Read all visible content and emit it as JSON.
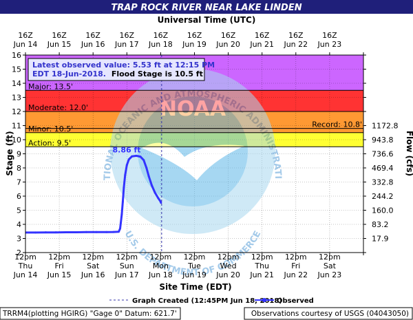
{
  "chart_data": {
    "type": "line",
    "title": "TRAP ROCK RIVER NEAR LAKE LINDEN",
    "top_axis_title": "Universal Time (UTC)",
    "xlabel": "Site Time (EDT)",
    "ylabel": "Stage (ft)",
    "y2label": "Flow (cfs)",
    "ylim": [
      2,
      16
    ],
    "y_ticks": [
      2,
      3,
      4,
      5,
      6,
      7,
      8,
      9,
      10,
      11,
      12,
      13,
      14,
      15,
      16
    ],
    "bottom_ticks": [
      {
        "line1": "12pm",
        "line2": "Thu",
        "line3": "Jun 14"
      },
      {
        "line1": "12pm",
        "line2": "Fri",
        "line3": "Jun 15"
      },
      {
        "line1": "12pm",
        "line2": "Sat",
        "line3": "Jun 16"
      },
      {
        "line1": "12pm",
        "line2": "Sun",
        "line3": "Jun 17"
      },
      {
        "line1": "12pm",
        "line2": "Mon",
        "line3": "Jun 18"
      },
      {
        "line1": "12pm",
        "line2": "Tue",
        "line3": "Jun 19"
      },
      {
        "line1": "12pm",
        "line2": "Wed",
        "line3": "Jun 20"
      },
      {
        "line1": "12pm",
        "line2": "Thu",
        "line3": "Jun 21"
      },
      {
        "line1": "12pm",
        "line2": "Fri",
        "line3": "Jun 22"
      },
      {
        "line1": "12pm",
        "line2": "Sat",
        "line3": "Jun 23"
      }
    ],
    "top_ticks": [
      {
        "line1": "16Z",
        "line2": "Jun 14"
      },
      {
        "line1": "16Z",
        "line2": "Jun 15"
      },
      {
        "line1": "16Z",
        "line2": "Jun 16"
      },
      {
        "line1": "16Z",
        "line2": "Jun 17"
      },
      {
        "line1": "16Z",
        "line2": "Jun 18"
      },
      {
        "line1": "16Z",
        "line2": "Jun 19"
      },
      {
        "line1": "16Z",
        "line2": "Jun 20"
      },
      {
        "line1": "16Z",
        "line2": "Jun 21"
      },
      {
        "line1": "16Z",
        "line2": "Jun 22"
      },
      {
        "line1": "16Z",
        "line2": "Jun 23"
      }
    ],
    "flow_ticks": [
      {
        "stage": 11,
        "label": "1172.8"
      },
      {
        "stage": 10,
        "label": "943.8"
      },
      {
        "stage": 9,
        "label": "736.6"
      },
      {
        "stage": 8,
        "label": "469.4"
      },
      {
        "stage": 7,
        "label": "332.8"
      },
      {
        "stage": 6,
        "label": "244.2"
      },
      {
        "stage": 5,
        "label": "160.0"
      },
      {
        "stage": 4,
        "label": "83.2"
      },
      {
        "stage": 3,
        "label": "17.9"
      }
    ],
    "flood_categories": [
      {
        "label": "Major: 13.5'",
        "from": 13.5,
        "to": 16,
        "color": "#cc66ff"
      },
      {
        "label": "Moderate: 12.0'",
        "from": 12.0,
        "to": 13.5,
        "color": "#ff3333"
      },
      {
        "label": "Minor: 10.5'",
        "from": 10.5,
        "to": 12.0,
        "color": "#ff9933"
      },
      {
        "label": "Action: 9.5'",
        "from": 9.5,
        "to": 10.5,
        "color": "#ffff33"
      }
    ],
    "record": {
      "label": "Record: 10.8'",
      "value": 10.8
    },
    "graph_created_day": 4.0292,
    "series": [
      {
        "name": "Observed",
        "color": "#3333ff",
        "points": [
          [
            0.0,
            3.42
          ],
          [
            0.3,
            3.42
          ],
          [
            0.6,
            3.43
          ],
          [
            0.9,
            3.43
          ],
          [
            1.2,
            3.44
          ],
          [
            1.5,
            3.44
          ],
          [
            1.8,
            3.45
          ],
          [
            2.1,
            3.45
          ],
          [
            2.4,
            3.45
          ],
          [
            2.6,
            3.46
          ],
          [
            2.76,
            3.48
          ],
          [
            2.8,
            3.7
          ],
          [
            2.82,
            4.1
          ],
          [
            2.85,
            4.7
          ],
          [
            2.88,
            5.6
          ],
          [
            2.91,
            6.6
          ],
          [
            2.95,
            7.5
          ],
          [
            3.0,
            8.2
          ],
          [
            3.06,
            8.6
          ],
          [
            3.15,
            8.82
          ],
          [
            3.28,
            8.86
          ],
          [
            3.4,
            8.8
          ],
          [
            3.5,
            8.55
          ],
          [
            3.58,
            8.0
          ],
          [
            3.65,
            7.4
          ],
          [
            3.74,
            6.75
          ],
          [
            3.83,
            6.25
          ],
          [
            3.93,
            5.85
          ],
          [
            4.0,
            5.6
          ],
          [
            4.01,
            5.53
          ]
        ]
      }
    ],
    "peak_label": "8.86 ft",
    "peak_point": [
      3.28,
      8.86
    ],
    "legend": {
      "created": "Graph Created (12:45PM Jun 18, 2018)",
      "observed": "Observed"
    },
    "latest_box": {
      "line1": "Latest observed value: 5.53 ft at 12:15 PM",
      "line2a": "EDT 18-Jun-2018.",
      "line2b": "Flood Stage is 10.5 ft"
    },
    "footer_left": "TRRM4(plotting HGIRG) \"Gage 0\" Datum: 621.7'",
    "footer_right": "Observations courtesy of USGS (04043050)",
    "watermark": {
      "agency": "NATIONAL OCEANIC AND ATMOSPHERIC ADMINISTRATION",
      "department": "U.S. DEPARTMENT OF COMMERCE",
      "logo_text": "NOAA"
    }
  }
}
